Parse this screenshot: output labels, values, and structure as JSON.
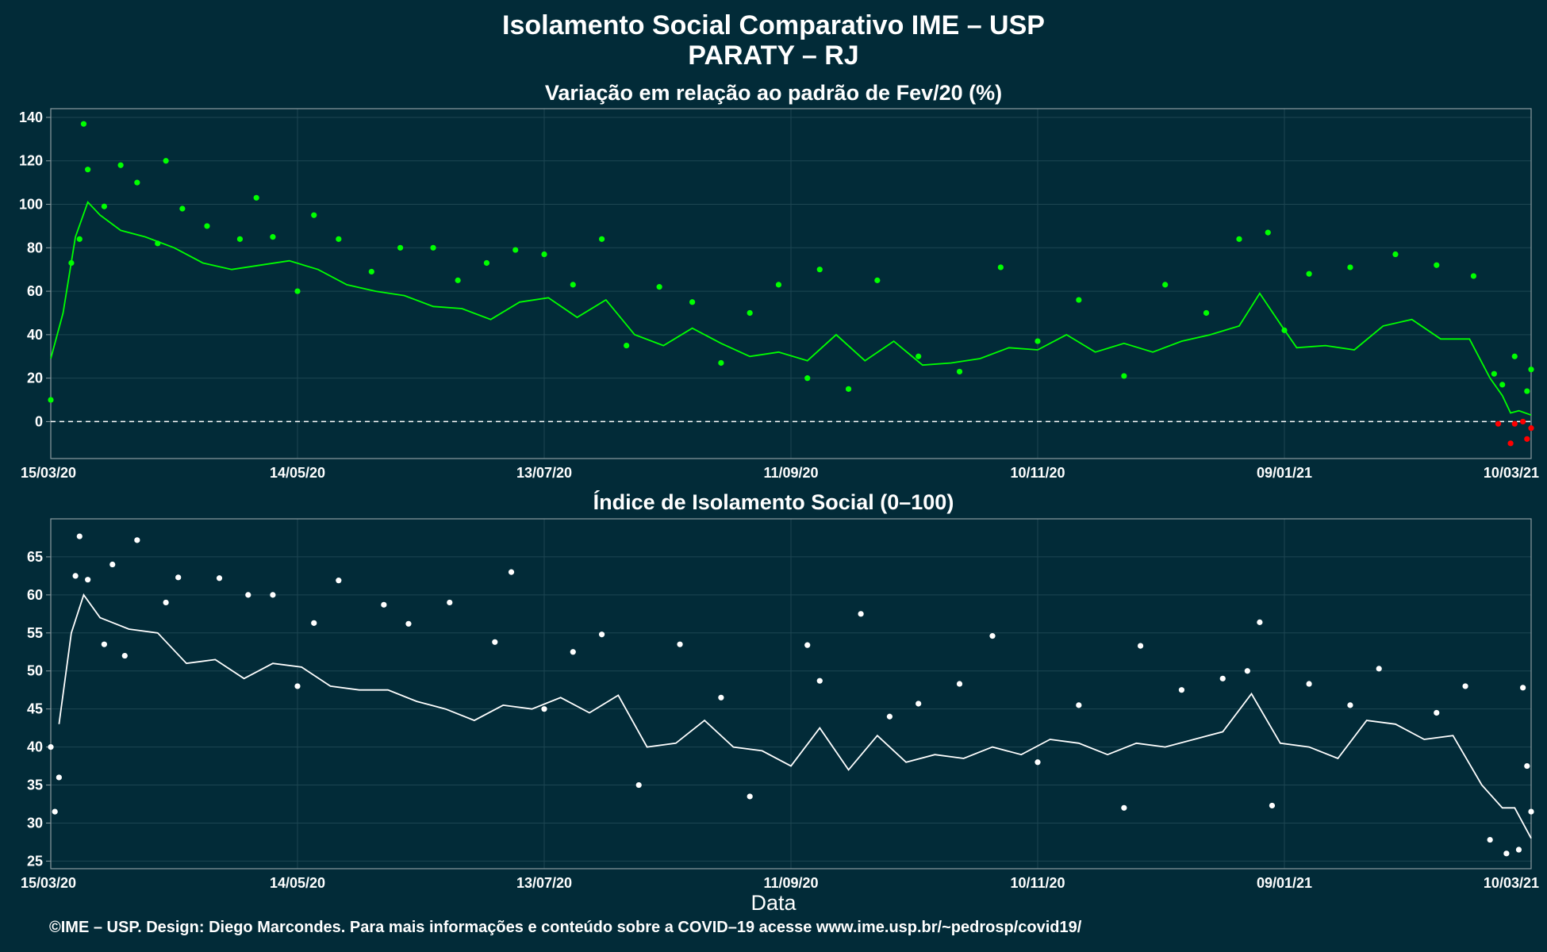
{
  "header": {
    "title": "Isolamento Social Comparativo IME – USP",
    "region": "PARATY – RJ"
  },
  "footer": "©IME – USP. Design: Diego Marcondes. Para mais informações e conteúdo sobre a COVID–19 acesse www.ime.usp.br/~pedrosp/covid19/",
  "colors": {
    "background": "#022b38",
    "variation_positive": "#00ff00",
    "variation_negative": "#ff0000",
    "index_series": "#ffffff",
    "grid": "#1d4652",
    "frame": "#8a9aa0"
  },
  "chart_data": [
    {
      "type": "scatter",
      "title": "Variação em relação ao padrão de Fev/20 (%)",
      "xlabel": "",
      "ylabel": "",
      "x_range": [
        "15/03/20",
        "10/03/21"
      ],
      "x_ticks": [
        "15/03/20",
        "14/05/20",
        "13/07/20",
        "11/09/20",
        "10/11/20",
        "09/01/21",
        "10/03/21"
      ],
      "y_ticks": [
        0,
        20,
        40,
        60,
        80,
        100,
        120,
        140
      ],
      "ylim": [
        -17,
        144
      ],
      "reference_line": 0,
      "grid": true,
      "series": [
        {
          "kind": "points",
          "points": [
            [
              "15/03/20",
              10
            ],
            [
              "20/03/20",
              73
            ],
            [
              "22/03/20",
              84
            ],
            [
              "23/03/20",
              137
            ],
            [
              "24/03/20",
              116
            ],
            [
              "28/03/20",
              99
            ],
            [
              "01/04/20",
              118
            ],
            [
              "05/04/20",
              110
            ],
            [
              "10/04/20",
              82
            ],
            [
              "12/04/20",
              120
            ],
            [
              "16/04/20",
              98
            ],
            [
              "22/04/20",
              90
            ],
            [
              "30/04/20",
              84
            ],
            [
              "04/05/20",
              103
            ],
            [
              "08/05/20",
              85
            ],
            [
              "14/05/20",
              60
            ],
            [
              "18/05/20",
              95
            ],
            [
              "24/05/20",
              84
            ],
            [
              "01/06/20",
              69
            ],
            [
              "08/06/20",
              80
            ],
            [
              "16/06/20",
              80
            ],
            [
              "22/06/20",
              65
            ],
            [
              "29/06/20",
              73
            ],
            [
              "06/07/20",
              79
            ],
            [
              "13/07/20",
              77
            ],
            [
              "20/07/20",
              63
            ],
            [
              "27/07/20",
              84
            ],
            [
              "02/08/20",
              35
            ],
            [
              "10/08/20",
              62
            ],
            [
              "18/08/20",
              55
            ],
            [
              "25/08/20",
              27
            ],
            [
              "01/09/20",
              50
            ],
            [
              "08/09/20",
              63
            ],
            [
              "15/09/20",
              20
            ],
            [
              "18/09/20",
              70
            ],
            [
              "25/09/20",
              15
            ],
            [
              "02/10/20",
              65
            ],
            [
              "12/10/20",
              30
            ],
            [
              "22/10/20",
              23
            ],
            [
              "01/11/20",
              71
            ],
            [
              "10/11/20",
              37
            ],
            [
              "20/11/20",
              56
            ],
            [
              "01/12/20",
              21
            ],
            [
              "11/12/20",
              63
            ],
            [
              "21/12/20",
              50
            ],
            [
              "29/12/20",
              84
            ],
            [
              "05/01/21",
              87
            ],
            [
              "09/01/21",
              42
            ],
            [
              "15/01/21",
              68
            ],
            [
              "25/01/21",
              71
            ],
            [
              "05/02/21",
              77
            ],
            [
              "15/02/21",
              72
            ],
            [
              "24/02/21",
              67
            ],
            [
              "01/03/21",
              22
            ],
            [
              "03/03/21",
              17
            ],
            [
              "06/03/21",
              30
            ],
            [
              "09/03/21",
              14
            ],
            [
              "10/03/21",
              24
            ]
          ]
        },
        {
          "kind": "moving-average",
          "points": [
            [
              "15/03/20",
              29
            ],
            [
              "18/03/20",
              50
            ],
            [
              "21/03/20",
              85
            ],
            [
              "24/03/20",
              101
            ],
            [
              "27/03/20",
              95
            ],
            [
              "01/04/20",
              88
            ],
            [
              "07/04/20",
              85
            ],
            [
              "14/04/20",
              80
            ],
            [
              "21/04/20",
              73
            ],
            [
              "28/04/20",
              70
            ],
            [
              "05/05/20",
              72
            ],
            [
              "12/05/20",
              74
            ],
            [
              "19/05/20",
              70
            ],
            [
              "26/05/20",
              63
            ],
            [
              "02/06/20",
              60
            ],
            [
              "09/06/20",
              58
            ],
            [
              "16/06/20",
              53
            ],
            [
              "23/06/20",
              52
            ],
            [
              "30/06/20",
              47
            ],
            [
              "07/07/20",
              55
            ],
            [
              "14/07/20",
              57
            ],
            [
              "21/07/20",
              48
            ],
            [
              "28/07/20",
              56
            ],
            [
              "04/08/20",
              40
            ],
            [
              "11/08/20",
              35
            ],
            [
              "18/08/20",
              43
            ],
            [
              "25/08/20",
              36
            ],
            [
              "01/09/20",
              30
            ],
            [
              "08/09/20",
              32
            ],
            [
              "15/09/20",
              28
            ],
            [
              "22/09/20",
              40
            ],
            [
              "29/09/20",
              28
            ],
            [
              "06/10/20",
              37
            ],
            [
              "13/10/20",
              26
            ],
            [
              "20/10/20",
              27
            ],
            [
              "27/10/20",
              29
            ],
            [
              "03/11/20",
              34
            ],
            [
              "10/11/20",
              33
            ],
            [
              "17/11/20",
              40
            ],
            [
              "24/11/20",
              32
            ],
            [
              "01/12/20",
              36
            ],
            [
              "08/12/20",
              32
            ],
            [
              "15/12/20",
              37
            ],
            [
              "22/12/20",
              40
            ],
            [
              "29/12/20",
              44
            ],
            [
              "03/01/21",
              59
            ],
            [
              "08/01/21",
              45
            ],
            [
              "12/01/21",
              34
            ],
            [
              "19/01/21",
              35
            ],
            [
              "26/01/21",
              33
            ],
            [
              "02/02/21",
              44
            ],
            [
              "09/02/21",
              47
            ],
            [
              "16/02/21",
              38
            ],
            [
              "23/02/21",
              38
            ],
            [
              "28/02/21",
              20
            ],
            [
              "03/03/21",
              12
            ],
            [
              "05/03/21",
              4
            ],
            [
              "07/03/21",
              5
            ],
            [
              "10/03/21",
              3
            ]
          ]
        },
        {
          "kind": "negative-points",
          "points": [
            [
              "02/03/21",
              -1
            ],
            [
              "05/03/21",
              -10
            ],
            [
              "06/03/21",
              -1
            ],
            [
              "08/03/21",
              0
            ],
            [
              "09/03/21",
              -8
            ],
            [
              "10/03/21",
              -3
            ]
          ]
        }
      ]
    },
    {
      "type": "scatter",
      "title": "Índice de Isolamento Social (0–100)",
      "xlabel": "Data",
      "ylabel": "",
      "x_range": [
        "15/03/20",
        "10/03/21"
      ],
      "x_ticks": [
        "15/03/20",
        "14/05/20",
        "13/07/20",
        "11/09/20",
        "10/11/20",
        "09/01/21",
        "10/03/21"
      ],
      "y_ticks": [
        25,
        30,
        35,
        40,
        45,
        50,
        55,
        60,
        65
      ],
      "ylim": [
        24,
        70
      ],
      "grid": true,
      "series": [
        {
          "kind": "points",
          "points": [
            [
              "15/03/20",
              40
            ],
            [
              "16/03/20",
              31.5
            ],
            [
              "17/03/20",
              36
            ],
            [
              "21/03/20",
              62.5
            ],
            [
              "22/03/20",
              67.7
            ],
            [
              "24/03/20",
              62
            ],
            [
              "28/03/20",
              53.5
            ],
            [
              "30/03/20",
              64
            ],
            [
              "02/04/20",
              52
            ],
            [
              "05/04/20",
              67.2
            ],
            [
              "12/04/20",
              59
            ],
            [
              "15/04/20",
              62.3
            ],
            [
              "25/04/20",
              62.2
            ],
            [
              "02/05/20",
              60
            ],
            [
              "08/05/20",
              60
            ],
            [
              "14/05/20",
              48
            ],
            [
              "18/05/20",
              56.3
            ],
            [
              "24/05/20",
              61.9
            ],
            [
              "04/06/20",
              58.7
            ],
            [
              "10/06/20",
              56.2
            ],
            [
              "20/06/20",
              59
            ],
            [
              "01/07/20",
              53.8
            ],
            [
              "05/07/20",
              63
            ],
            [
              "13/07/20",
              45
            ],
            [
              "20/07/20",
              52.5
            ],
            [
              "27/07/20",
              54.8
            ],
            [
              "05/08/20",
              35
            ],
            [
              "15/08/20",
              53.5
            ],
            [
              "25/08/20",
              46.5
            ],
            [
              "01/09/20",
              33.5
            ],
            [
              "15/09/20",
              53.4
            ],
            [
              "18/09/20",
              48.7
            ],
            [
              "28/09/20",
              57.5
            ],
            [
              "05/10/20",
              44
            ],
            [
              "12/10/20",
              45.7
            ],
            [
              "22/10/20",
              48.3
            ],
            [
              "30/10/20",
              54.6
            ],
            [
              "10/11/20",
              38
            ],
            [
              "20/11/20",
              45.5
            ],
            [
              "01/12/20",
              32
            ],
            [
              "05/12/20",
              53.3
            ],
            [
              "15/12/20",
              47.5
            ],
            [
              "25/12/20",
              49
            ],
            [
              "31/12/20",
              50
            ],
            [
              "03/01/21",
              56.4
            ],
            [
              "06/01/21",
              32.3
            ],
            [
              "15/01/21",
              48.3
            ],
            [
              "25/01/21",
              45.5
            ],
            [
              "01/02/21",
              50.3
            ],
            [
              "15/02/21",
              44.5
            ],
            [
              "22/02/21",
              48
            ],
            [
              "28/02/21",
              27.8
            ],
            [
              "04/03/21",
              26
            ],
            [
              "07/03/21",
              26.5
            ],
            [
              "08/03/21",
              47.8
            ],
            [
              "09/03/21",
              37.5
            ],
            [
              "10/03/21",
              31.5
            ]
          ]
        },
        {
          "kind": "moving-average",
          "points": [
            [
              "17/03/20",
              43
            ],
            [
              "20/03/20",
              55
            ],
            [
              "23/03/20",
              60
            ],
            [
              "27/03/20",
              57
            ],
            [
              "03/04/20",
              55.5
            ],
            [
              "10/04/20",
              55
            ],
            [
              "17/04/20",
              51
            ],
            [
              "24/04/20",
              51.5
            ],
            [
              "01/05/20",
              49
            ],
            [
              "08/05/20",
              51
            ],
            [
              "15/05/20",
              50.5
            ],
            [
              "22/05/20",
              48
            ],
            [
              "29/05/20",
              47.5
            ],
            [
              "05/06/20",
              47.5
            ],
            [
              "12/06/20",
              46
            ],
            [
              "19/06/20",
              45
            ],
            [
              "26/06/20",
              43.5
            ],
            [
              "03/07/20",
              45.5
            ],
            [
              "10/07/20",
              45
            ],
            [
              "17/07/20",
              46.5
            ],
            [
              "24/07/20",
              44.5
            ],
            [
              "31/07/20",
              46.8
            ],
            [
              "07/08/20",
              40
            ],
            [
              "14/08/20",
              40.5
            ],
            [
              "21/08/20",
              43.5
            ],
            [
              "28/08/20",
              40
            ],
            [
              "04/09/20",
              39.5
            ],
            [
              "11/09/20",
              37.5
            ],
            [
              "18/09/20",
              42.5
            ],
            [
              "25/09/20",
              37
            ],
            [
              "02/10/20",
              41.5
            ],
            [
              "09/10/20",
              38
            ],
            [
              "16/10/20",
              39
            ],
            [
              "23/10/20",
              38.5
            ],
            [
              "30/10/20",
              40
            ],
            [
              "06/11/20",
              39
            ],
            [
              "13/11/20",
              41
            ],
            [
              "20/11/20",
              40.5
            ],
            [
              "27/11/20",
              39
            ],
            [
              "04/12/20",
              40.5
            ],
            [
              "11/12/20",
              40
            ],
            [
              "18/12/20",
              41
            ],
            [
              "25/12/20",
              42
            ],
            [
              "01/01/21",
              47
            ],
            [
              "08/01/21",
              40.5
            ],
            [
              "15/01/21",
              40
            ],
            [
              "22/01/21",
              38.5
            ],
            [
              "29/01/21",
              43.5
            ],
            [
              "05/02/21",
              43
            ],
            [
              "12/02/21",
              41
            ],
            [
              "19/02/21",
              41.5
            ],
            [
              "26/02/21",
              35
            ],
            [
              "03/03/21",
              32
            ],
            [
              "06/03/21",
              32
            ],
            [
              "10/03/21",
              28
            ]
          ]
        }
      ]
    }
  ]
}
